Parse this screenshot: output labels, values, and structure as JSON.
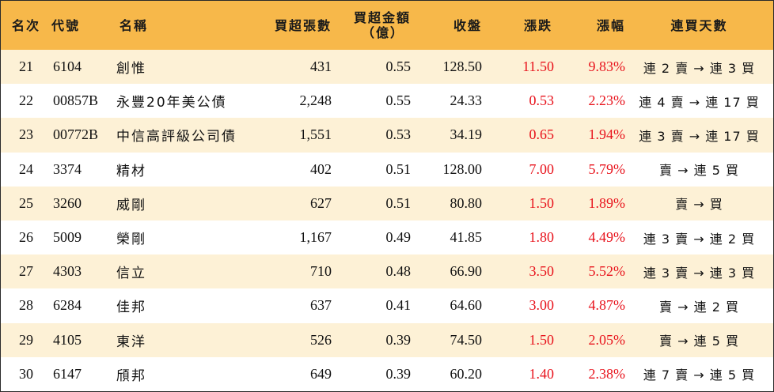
{
  "headers": {
    "rank": "名次",
    "code": "代號",
    "name": "名稱",
    "net_buy_lots": "買超張數",
    "net_buy_amount_line1": "買超金額",
    "net_buy_amount_line2": "（億）",
    "close": "收盤",
    "change": "漲跌",
    "change_pct": "漲幅",
    "streak": "連買天數"
  },
  "colors": {
    "header_bg": "#f7b84a",
    "row_alt_bg": "#fdf1d6",
    "up_red": "#e8131c"
  },
  "rows": [
    {
      "rank": "21",
      "code": "6104",
      "name": "創惟",
      "net_buy_lots": "431",
      "net_buy_amount": "0.55",
      "close": "128.50",
      "change": "11.50",
      "change_pct": "9.83%",
      "streak": "連 2 賣 → 連 3 買"
    },
    {
      "rank": "22",
      "code": "00857B",
      "name": "永豐20年美公債",
      "net_buy_lots": "2,248",
      "net_buy_amount": "0.55",
      "close": "24.33",
      "change": "0.53",
      "change_pct": "2.23%",
      "streak": "連 4 賣 → 連 17 買"
    },
    {
      "rank": "23",
      "code": "00772B",
      "name": "中信高評級公司債",
      "net_buy_lots": "1,551",
      "net_buy_amount": "0.53",
      "close": "34.19",
      "change": "0.65",
      "change_pct": "1.94%",
      "streak": "連 3 賣 → 連 17 買"
    },
    {
      "rank": "24",
      "code": "3374",
      "name": "精材",
      "net_buy_lots": "402",
      "net_buy_amount": "0.51",
      "close": "128.00",
      "change": "7.00",
      "change_pct": "5.79%",
      "streak": "賣 → 連 5 買"
    },
    {
      "rank": "25",
      "code": "3260",
      "name": "威剛",
      "net_buy_lots": "627",
      "net_buy_amount": "0.51",
      "close": "80.80",
      "change": "1.50",
      "change_pct": "1.89%",
      "streak": "賣 → 買"
    },
    {
      "rank": "26",
      "code": "5009",
      "name": "榮剛",
      "net_buy_lots": "1,167",
      "net_buy_amount": "0.49",
      "close": "41.85",
      "change": "1.80",
      "change_pct": "4.49%",
      "streak": "連 3 賣 → 連 2 買"
    },
    {
      "rank": "27",
      "code": "4303",
      "name": "信立",
      "net_buy_lots": "710",
      "net_buy_amount": "0.48",
      "close": "66.90",
      "change": "3.50",
      "change_pct": "5.52%",
      "streak": "連 3 賣 → 連 3 買"
    },
    {
      "rank": "28",
      "code": "6284",
      "name": "佳邦",
      "net_buy_lots": "637",
      "net_buy_amount": "0.41",
      "close": "64.60",
      "change": "3.00",
      "change_pct": "4.87%",
      "streak": "賣 → 連 2 買"
    },
    {
      "rank": "29",
      "code": "4105",
      "name": "東洋",
      "net_buy_lots": "526",
      "net_buy_amount": "0.39",
      "close": "74.50",
      "change": "1.50",
      "change_pct": "2.05%",
      "streak": "賣 → 連 5 買"
    },
    {
      "rank": "30",
      "code": "6147",
      "name": "頎邦",
      "net_buy_lots": "649",
      "net_buy_amount": "0.39",
      "close": "60.20",
      "change": "1.40",
      "change_pct": "2.38%",
      "streak": "連 7 賣 → 連 5 買"
    }
  ]
}
